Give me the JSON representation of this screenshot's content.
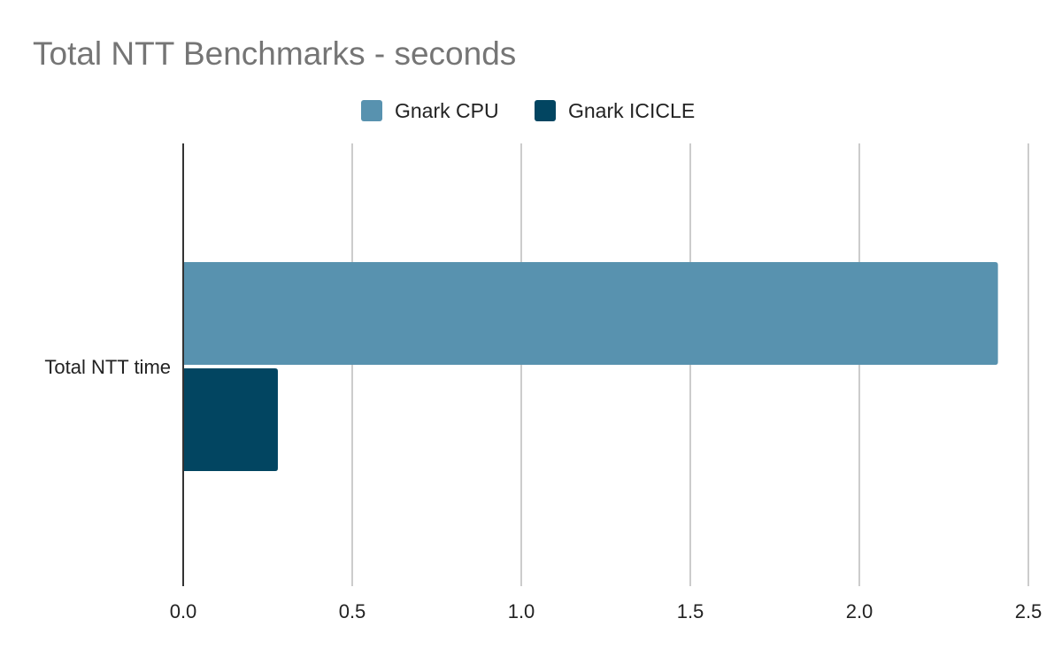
{
  "chart_data": {
    "type": "bar",
    "orientation": "horizontal",
    "title": "Total NTT Benchmarks - seconds",
    "categories": [
      "Total NTT time"
    ],
    "series": [
      {
        "name": "Gnark CPU",
        "values": [
          2.41
        ],
        "color": "#5892af"
      },
      {
        "name": "Gnark ICICLE",
        "values": [
          0.28
        ],
        "color": "#024561"
      }
    ],
    "xlim": [
      0,
      2.5
    ],
    "xticks": [
      "0.0",
      "0.5",
      "1.0",
      "1.5",
      "2.0",
      "2.5"
    ],
    "xtick_values": [
      0,
      0.5,
      1.0,
      1.5,
      2.0,
      2.5
    ],
    "xlabel": "",
    "ylabel": "",
    "grid": "vertical",
    "legend": "top-center"
  }
}
